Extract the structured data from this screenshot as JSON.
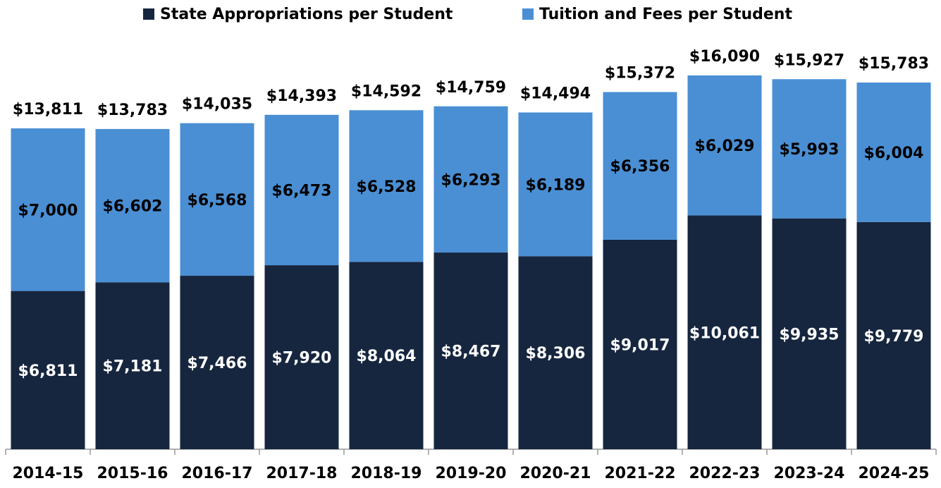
{
  "chart_data": {
    "type": "stacked_bar",
    "categories": [
      "2014-15",
      "2015-16",
      "2016-17",
      "2017-18",
      "2018-19",
      "2019-20",
      "2020-21",
      "2021-22",
      "2022-23",
      "2023-24",
      "2024-25"
    ],
    "series": [
      {
        "name": "State Appropriations per Student",
        "color": "#16263f",
        "values": [
          6811,
          7181,
          7466,
          7920,
          8064,
          8467,
          8306,
          9017,
          10061,
          9935,
          9779
        ],
        "value_labels": [
          "$6,811",
          "$7,181",
          "$7,466",
          "$7,920",
          "$8,064",
          "$8,467",
          "$8,306",
          "$9,017",
          "$10,061",
          "$9,935",
          "$9,779"
        ]
      },
      {
        "name": "Tuition and Fees per Student",
        "color": "#4a8fd4",
        "values": [
          7000,
          6602,
          6568,
          6473,
          6528,
          6293,
          6189,
          6356,
          6029,
          5993,
          6004
        ],
        "value_labels": [
          "$7,000",
          "$6,602",
          "$6,568",
          "$6,473",
          "$6,528",
          "$6,293",
          "$6,189",
          "$6,356",
          "$6,029",
          "$5,993",
          "$6,004"
        ]
      }
    ],
    "totals": {
      "values": [
        13811,
        13783,
        14035,
        14393,
        14592,
        14759,
        14494,
        15372,
        16090,
        15927,
        15783
      ],
      "value_labels": [
        "$13,811",
        "$13,783",
        "$14,035",
        "$14,393",
        "$14,592",
        "$14,759",
        "$14,494",
        "$15,372",
        "$16,090",
        "$15,927",
        "$15,783"
      ]
    },
    "ylim": [
      0,
      18000
    ],
    "legend": "top"
  }
}
